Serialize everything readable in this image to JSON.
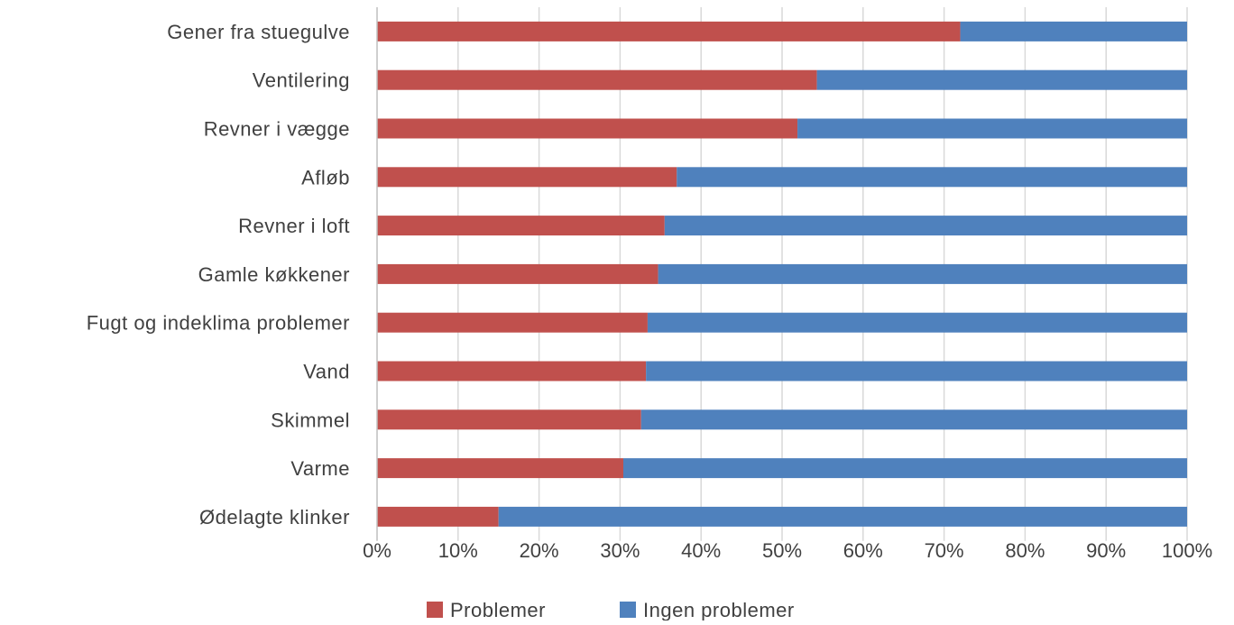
{
  "chart_data": {
    "type": "bar",
    "orientation": "horizontal",
    "stacked": "percent",
    "categories": [
      "Gener fra stuegulve",
      "Ventilering",
      "Revner i vægge",
      "Afløb",
      "Revner i loft",
      "Gamle køkkener",
      "Fugt og indeklima problemer",
      "Vand",
      "Skimmel",
      "Varme",
      "Ødelagte klinker"
    ],
    "series": [
      {
        "name": "Problemer",
        "color": "#C0504D",
        "values": [
          72,
          54.3,
          51.9,
          37,
          35.5,
          34.7,
          33.4,
          33.2,
          32.6,
          30.4,
          15
        ]
      },
      {
        "name": "Ingen problemer",
        "color": "#4F81BD",
        "values": [
          28,
          45.7,
          48.1,
          63,
          64.5,
          65.3,
          66.6,
          66.8,
          67.4,
          69.6,
          85
        ]
      }
    ],
    "x_ticks": [
      "0%",
      "10%",
      "20%",
      "30%",
      "40%",
      "50%",
      "60%",
      "70%",
      "80%",
      "90%",
      "100%"
    ],
    "xlim": [
      0,
      100
    ],
    "grid": true,
    "legend_position": "bottom",
    "title": "",
    "xlabel": "",
    "ylabel": ""
  },
  "colors": {
    "grid": "#D9D9D9",
    "axis": "#BFBFBF",
    "text": "#404040"
  }
}
